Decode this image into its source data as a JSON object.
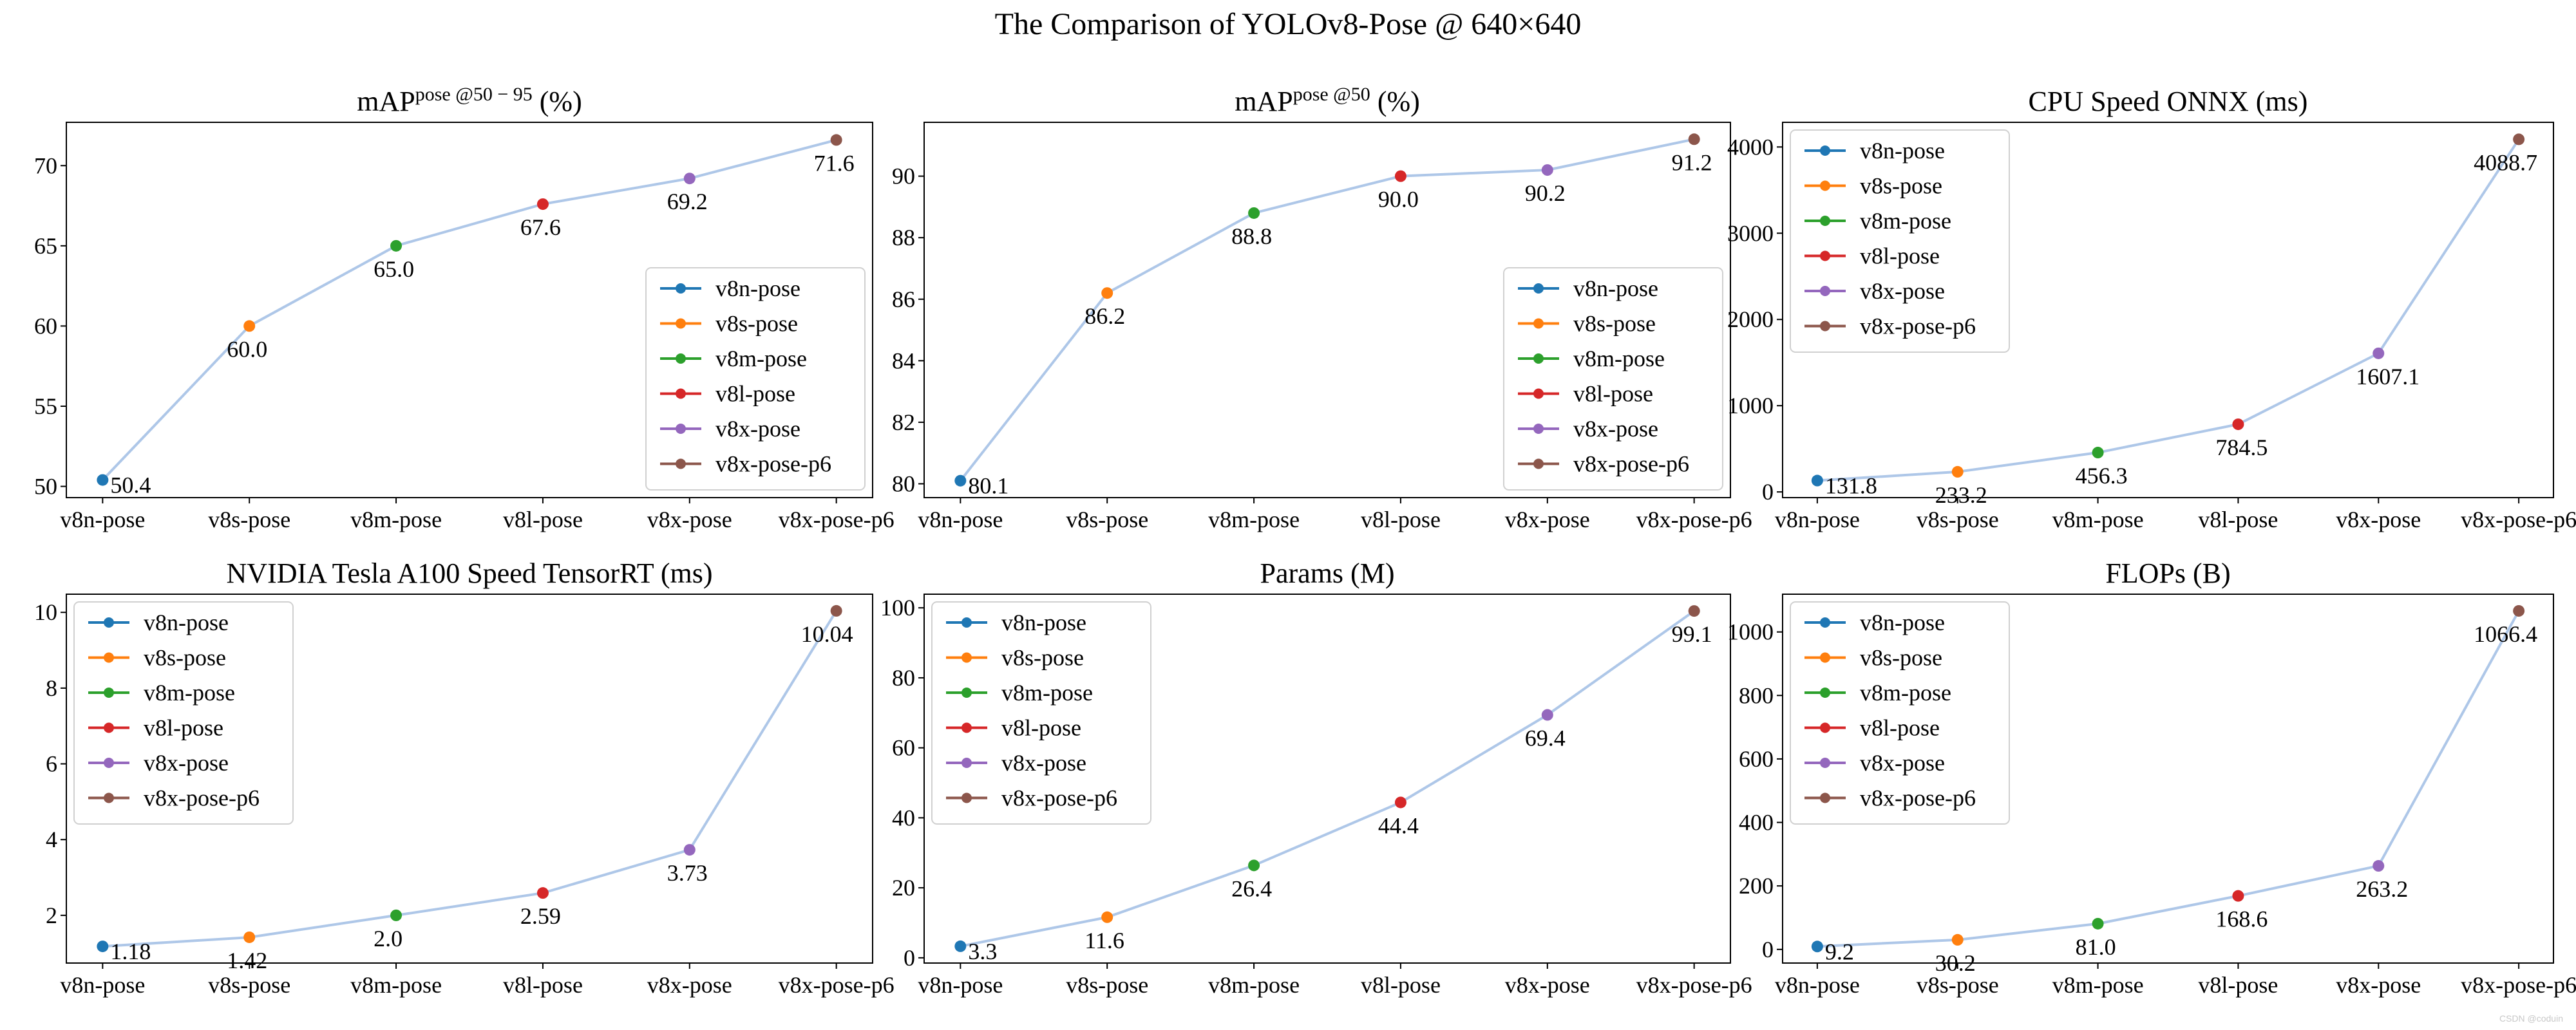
{
  "title": "The Comparison of YOLOv8-Pose @ 640×640",
  "watermark": "CSDN @coduin",
  "colors": {
    "line": "#aec7e8",
    "markers": [
      "#1f77b4",
      "#ff7f0e",
      "#2ca02c",
      "#d62728",
      "#9467bd",
      "#8c564b"
    ]
  },
  "chart_data": [
    {
      "type": "line",
      "title": "mAP",
      "title_sup": "pose @50 − 95",
      "title_suffix": " (%)",
      "categories": [
        "v8n-pose",
        "v8s-pose",
        "v8m-pose",
        "v8l-pose",
        "v8x-pose",
        "v8x-pose-p6"
      ],
      "values": [
        50.4,
        60.0,
        65.0,
        67.6,
        69.2,
        71.6
      ],
      "labels": [
        "50.4",
        "60.0",
        "65.0",
        "67.6",
        "69.2",
        "71.6"
      ],
      "ylim": [
        49.3,
        72.7
      ],
      "yticks": [
        50,
        55,
        60,
        65,
        70
      ],
      "legend": "lower-right",
      "legend_entries": [
        "v8n-pose",
        "v8s-pose",
        "v8m-pose",
        "v8l-pose",
        "v8x-pose",
        "v8x-pose-p6"
      ]
    },
    {
      "type": "line",
      "title": "mAP",
      "title_sup": "pose @50",
      "title_suffix": " (%)",
      "categories": [
        "v8n-pose",
        "v8s-pose",
        "v8m-pose",
        "v8l-pose",
        "v8x-pose",
        "v8x-pose-p6"
      ],
      "values": [
        80.1,
        86.2,
        88.8,
        90.0,
        90.2,
        91.2
      ],
      "labels": [
        "80.1",
        "86.2",
        "88.8",
        "90.0",
        "90.2",
        "91.2"
      ],
      "ylim": [
        79.55,
        91.75
      ],
      "yticks": [
        80,
        82,
        84,
        86,
        88,
        90
      ],
      "legend": "lower-right",
      "legend_entries": [
        "v8n-pose",
        "v8s-pose",
        "v8m-pose",
        "v8l-pose",
        "v8x-pose",
        "v8x-pose-p6"
      ]
    },
    {
      "type": "line",
      "title": "CPU Speed ONNX (ms)",
      "categories": [
        "v8n-pose",
        "v8s-pose",
        "v8m-pose",
        "v8l-pose",
        "v8x-pose",
        "v8x-pose-p6"
      ],
      "values": [
        131.8,
        233.2,
        456.3,
        784.5,
        1607.1,
        4088.7
      ],
      "labels": [
        "131.8",
        "233.2",
        "456.3",
        "784.5",
        "1607.1",
        "4088.7"
      ],
      "ylim": [
        -66,
        4286
      ],
      "yticks": [
        0,
        1000,
        2000,
        3000,
        4000
      ],
      "legend": "upper-left",
      "legend_entries": [
        "v8n-pose",
        "v8s-pose",
        "v8m-pose",
        "v8l-pose",
        "v8x-pose",
        "v8x-pose-p6"
      ]
    },
    {
      "type": "line",
      "title": "NVIDIA Tesla A100 Speed TensorRT (ms)",
      "categories": [
        "v8n-pose",
        "v8s-pose",
        "v8m-pose",
        "v8l-pose",
        "v8x-pose",
        "v8x-pose-p6"
      ],
      "values": [
        1.18,
        1.42,
        2.0,
        2.59,
        3.73,
        10.04
      ],
      "labels": [
        "1.18",
        "1.42",
        "2.0",
        "2.59",
        "3.73",
        "10.04"
      ],
      "ylim": [
        0.74,
        10.48
      ],
      "yticks": [
        2,
        4,
        6,
        8,
        10
      ],
      "legend": "upper-left",
      "legend_entries": [
        "v8n-pose",
        "v8s-pose",
        "v8m-pose",
        "v8l-pose",
        "v8x-pose",
        "v8x-pose-p6"
      ]
    },
    {
      "type": "line",
      "title": "Params (M)",
      "categories": [
        "v8n-pose",
        "v8s-pose",
        "v8m-pose",
        "v8l-pose",
        "v8x-pose",
        "v8x-pose-p6"
      ],
      "values": [
        3.3,
        11.6,
        26.4,
        44.4,
        69.4,
        99.1
      ],
      "labels": [
        "3.3",
        "11.6",
        "26.4",
        "44.4",
        "69.4",
        "99.1"
      ],
      "ylim": [
        -1.5,
        103.9
      ],
      "yticks": [
        0,
        20,
        40,
        60,
        80,
        100
      ],
      "legend": "upper-left",
      "legend_entries": [
        "v8n-pose",
        "v8s-pose",
        "v8m-pose",
        "v8l-pose",
        "v8x-pose",
        "v8x-pose-p6"
      ]
    },
    {
      "type": "line",
      "title": "FLOPs (B)",
      "categories": [
        "v8n-pose",
        "v8s-pose",
        "v8m-pose",
        "v8l-pose",
        "v8x-pose",
        "v8x-pose-p6"
      ],
      "values": [
        9.2,
        30.2,
        81.0,
        168.6,
        263.2,
        1066.4
      ],
      "labels": [
        "9.2",
        "30.2",
        "81.0",
        "168.6",
        "263.2",
        "1066.4"
      ],
      "ylim": [
        -43,
        1119
      ],
      "yticks": [
        0,
        200,
        400,
        600,
        800,
        1000
      ],
      "legend": "upper-left",
      "legend_entries": [
        "v8n-pose",
        "v8s-pose",
        "v8m-pose",
        "v8l-pose",
        "v8x-pose",
        "v8x-pose-p6"
      ]
    }
  ]
}
